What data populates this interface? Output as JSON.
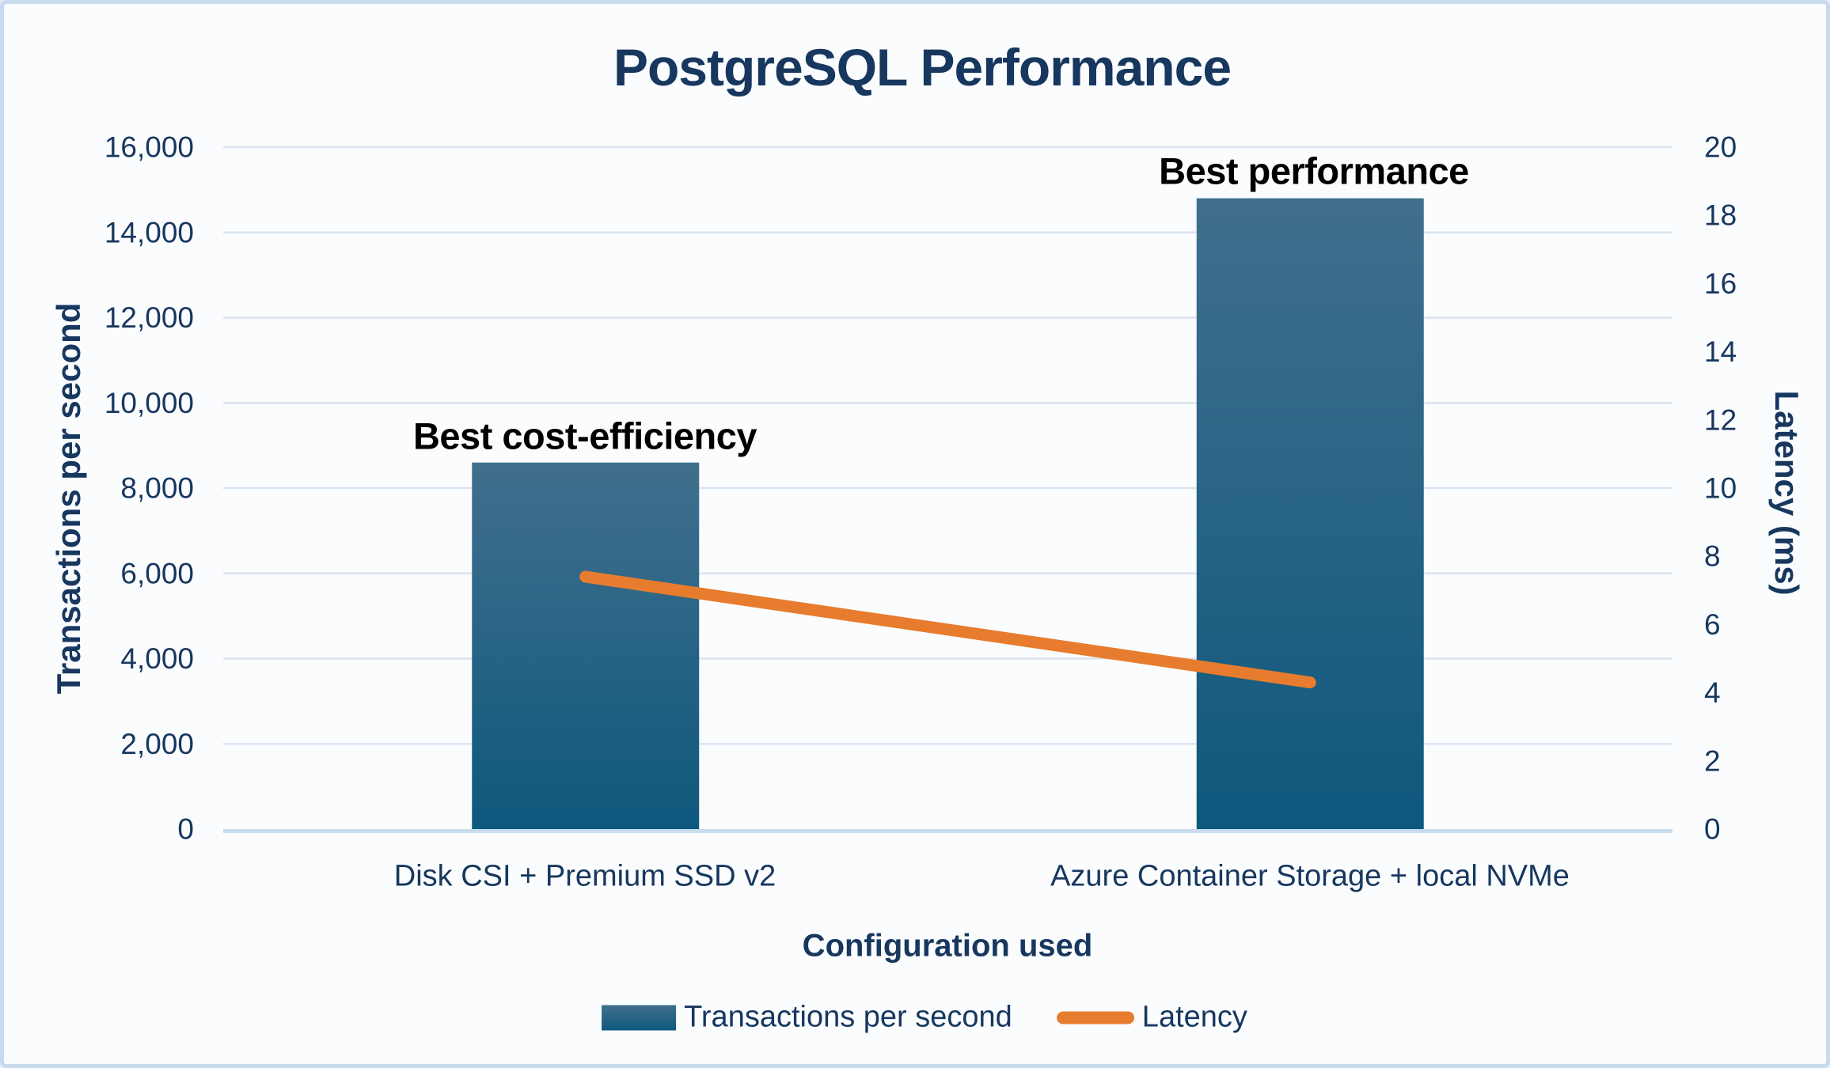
{
  "chart_data": {
    "type": "bar",
    "title": "PostgreSQL Performance",
    "categories": [
      "Disk CSI + Premium SSD v2",
      "Azure Container Storage + local NVMe"
    ],
    "series": [
      {
        "name": "Transactions per second",
        "type": "bar",
        "axis": "left",
        "values": [
          8600,
          14800
        ]
      },
      {
        "name": "Latency",
        "type": "line",
        "axis": "right",
        "values": [
          7.4,
          4.3
        ]
      }
    ],
    "xlabel": "Configuration used",
    "ylabel_left": "Transactions per second",
    "ylabel_right": "Latency (ms)",
    "ylim_left": [
      0,
      16000
    ],
    "ylim_right": [
      0,
      20
    ],
    "yticks_left": [
      "0",
      "2,000",
      "4,000",
      "6,000",
      "8,000",
      "10,000",
      "12,000",
      "14,000",
      "16,000"
    ],
    "yticks_right": [
      "0",
      "2",
      "4",
      "6",
      "8",
      "10",
      "12",
      "14",
      "16",
      "18",
      "20"
    ],
    "annotations": [
      {
        "text": "Best cost-efficiency",
        "category": 0
      },
      {
        "text": "Best performance",
        "category": 1
      }
    ],
    "grid": true,
    "legend_position": "bottom"
  },
  "colors": {
    "bar_gradient_top": "#416F8D",
    "bar_gradient_bottom": "#0E587D",
    "line_orange": "#E87C2E",
    "gridline": "#D9E4F1",
    "baseline": "#C9DCEE",
    "text_navy": "#17375E",
    "annotation_black": "#000000",
    "canvas_background": "#FAFCFE",
    "canvas_border": "#C7DAEE"
  }
}
